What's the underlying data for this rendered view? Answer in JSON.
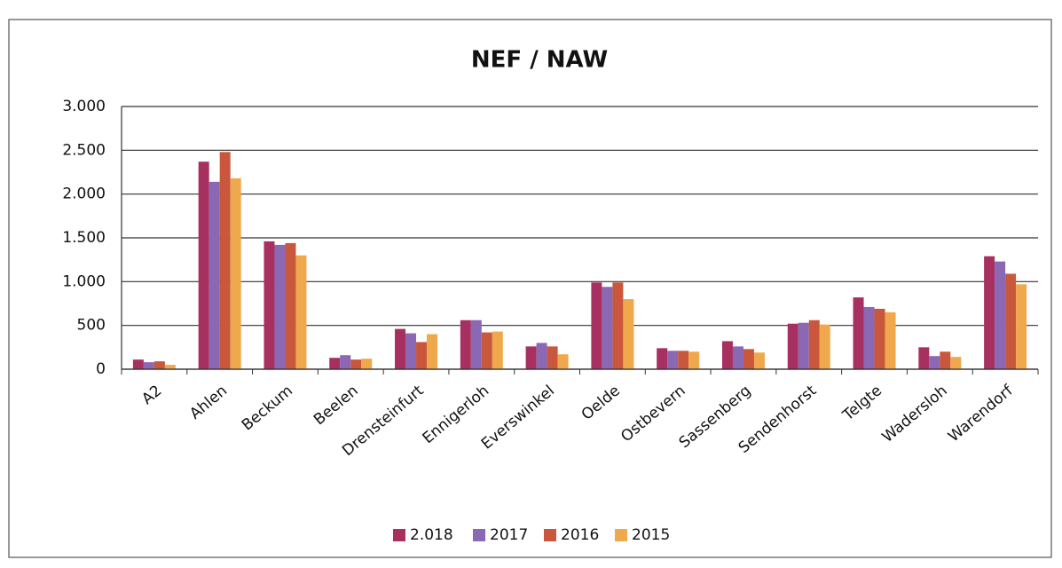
{
  "chart_data": {
    "type": "bar",
    "title": "NEF / NAW",
    "categories": [
      "A2",
      "Ahlen",
      "Beckum",
      "Beelen",
      "Drensteinfurt",
      "Ennigerloh",
      "Everswinkel",
      "Oelde",
      "Ostbevern",
      "Sassenberg",
      "Sendenhorst",
      "Telgte",
      "Wadersloh",
      "Warendorf"
    ],
    "series": [
      {
        "name": "2.018",
        "color": "#a83060",
        "values": [
          110,
          2370,
          1460,
          130,
          460,
          560,
          260,
          990,
          240,
          320,
          520,
          820,
          250,
          1290
        ]
      },
      {
        "name": "2017",
        "color": "#8a68b4",
        "values": [
          80,
          2140,
          1420,
          160,
          410,
          560,
          300,
          940,
          210,
          260,
          530,
          710,
          150,
          1230
        ]
      },
      {
        "name": "2016",
        "color": "#c9573c",
        "values": [
          90,
          2480,
          1440,
          110,
          310,
          420,
          260,
          990,
          210,
          230,
          560,
          690,
          200,
          1090
        ]
      },
      {
        "name": "2015",
        "color": "#f0a84c",
        "values": [
          50,
          2180,
          1300,
          120,
          400,
          430,
          170,
          800,
          200,
          190,
          510,
          650,
          140,
          970
        ]
      }
    ],
    "ylim": [
      0,
      3000
    ],
    "yticks": [
      0,
      500,
      {
        "value": 1000,
        "label": "1.000"
      },
      {
        "value": 1500,
        "label": "1.500"
      },
      {
        "value": 2000,
        "label": "2.000"
      },
      {
        "value": 2500,
        "label": "2.500"
      },
      {
        "value": 3000,
        "label": "3.000"
      }
    ],
    "grid": true,
    "legend": "bottom"
  }
}
